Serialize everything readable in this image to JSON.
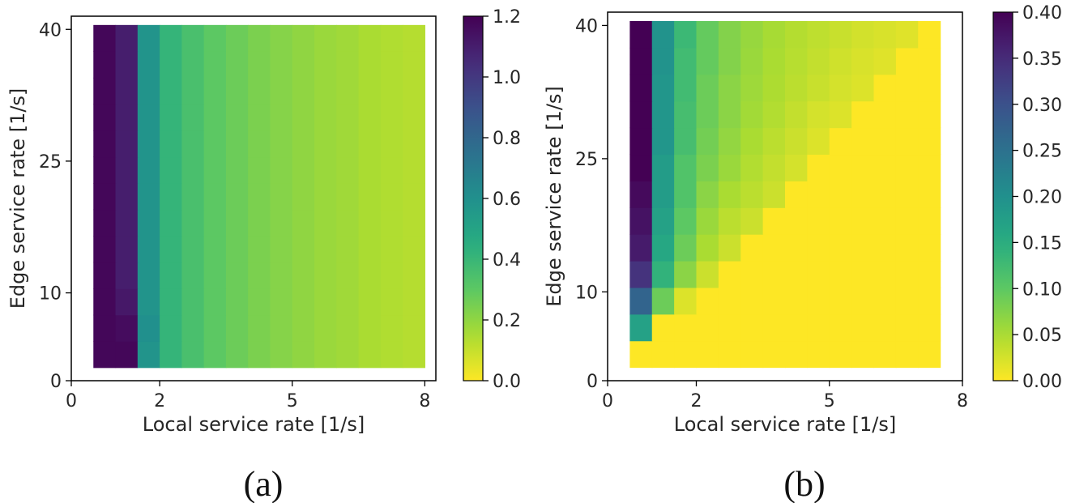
{
  "chart_data": [
    {
      "type": "heatmap",
      "panel_label": "(a)",
      "xlabel": "Local service rate [1/s]",
      "ylabel": "Edge service rate [1/s]",
      "xticks": [
        "0",
        "2",
        "5",
        "8"
      ],
      "xtick_values": [
        0,
        2,
        5,
        8
      ],
      "yticks": [
        "0",
        "10",
        "25",
        "40"
      ],
      "ytick_values": [
        0,
        10,
        25,
        40
      ],
      "colorbar": {
        "colormap": "viridis_r",
        "min": 0.0,
        "max": 1.2,
        "ticks": [
          "0.0",
          "0.2",
          "0.4",
          "0.6",
          "0.8",
          "1.0",
          "1.2"
        ],
        "tick_values": [
          0.0,
          0.2,
          0.4,
          0.6,
          0.8,
          1.0,
          1.2
        ]
      },
      "grid": false,
      "x_centers": [
        0.75,
        1.25,
        1.75,
        2.25,
        2.75,
        3.25,
        3.75,
        4.25,
        4.75,
        5.25,
        5.75,
        6.25,
        6.75,
        7.25,
        7.75
      ],
      "y_centers": [
        3,
        6,
        9,
        12,
        15,
        18,
        21,
        24,
        27,
        30,
        33,
        36,
        39
      ],
      "x_edges": [
        0.5,
        8.0
      ],
      "y_edges": [
        1.5,
        40.5
      ],
      "row_template": [
        1.18,
        1.1,
        0.58,
        0.41,
        0.35,
        0.3,
        0.27,
        0.24,
        0.22,
        0.2,
        0.18,
        0.17,
        0.15,
        0.14,
        0.13
      ],
      "row_adjust": [
        [
          0,
          1,
          1.18
        ],
        [
          1,
          1,
          1.16
        ],
        [
          1,
          2,
          0.6
        ],
        [
          2,
          1,
          1.12
        ]
      ]
    },
    {
      "type": "heatmap",
      "panel_label": "(b)",
      "xlabel": "Local service rate [1/s]",
      "ylabel": "Edge service rate [1/s]",
      "xticks": [
        "0",
        "2",
        "5",
        "8"
      ],
      "xtick_values": [
        0,
        2,
        5,
        8
      ],
      "yticks": [
        "0",
        "10",
        "25",
        "40"
      ],
      "ytick_values": [
        0,
        10,
        25,
        40
      ],
      "colorbar": {
        "colormap": "viridis_r",
        "min": 0.0,
        "max": 0.4,
        "ticks": [
          "0.00",
          "0.05",
          "0.10",
          "0.15",
          "0.20",
          "0.25",
          "0.30",
          "0.35",
          "0.40"
        ],
        "tick_values": [
          0.0,
          0.05,
          0.1,
          0.15,
          0.2,
          0.25,
          0.3,
          0.35,
          0.4
        ]
      },
      "grid": false,
      "x_centers": [
        0.75,
        1.25,
        1.75,
        2.25,
        2.75,
        3.25,
        3.75,
        4.25,
        4.75,
        5.25,
        5.75,
        6.25,
        6.75,
        7.25
      ],
      "y_centers": [
        3,
        6,
        9,
        12,
        15,
        18,
        21,
        24,
        27,
        30,
        33,
        36,
        39
      ],
      "x_edges": [
        0.5,
        7.5
      ],
      "y_edges": [
        1.5,
        40.5
      ],
      "values": [
        [
          0.0,
          0.0,
          0.0,
          0.0,
          0.0,
          0.0,
          0.0,
          0.0,
          0.0,
          0.0,
          0.0,
          0.0,
          0.0,
          0.0
        ],
        [
          0.17,
          0.0,
          0.0,
          0.0,
          0.0,
          0.0,
          0.0,
          0.0,
          0.0,
          0.0,
          0.0,
          0.0,
          0.0,
          0.0
        ],
        [
          0.27,
          0.09,
          0.02,
          0.0,
          0.0,
          0.0,
          0.0,
          0.0,
          0.0,
          0.0,
          0.0,
          0.0,
          0.0,
          0.0
        ],
        [
          0.34,
          0.14,
          0.07,
          0.03,
          0.0,
          0.0,
          0.0,
          0.0,
          0.0,
          0.0,
          0.0,
          0.0,
          0.0,
          0.0
        ],
        [
          0.37,
          0.16,
          0.09,
          0.05,
          0.03,
          0.0,
          0.0,
          0.0,
          0.0,
          0.0,
          0.0,
          0.0,
          0.0,
          0.0
        ],
        [
          0.38,
          0.17,
          0.1,
          0.06,
          0.04,
          0.03,
          0.0,
          0.0,
          0.0,
          0.0,
          0.0,
          0.0,
          0.0,
          0.0
        ],
        [
          0.39,
          0.18,
          0.11,
          0.07,
          0.05,
          0.04,
          0.03,
          0.0,
          0.0,
          0.0,
          0.0,
          0.0,
          0.0,
          0.0
        ],
        [
          0.4,
          0.18,
          0.11,
          0.08,
          0.06,
          0.045,
          0.035,
          0.025,
          0.0,
          0.0,
          0.0,
          0.0,
          0.0,
          0.0
        ],
        [
          0.4,
          0.19,
          0.12,
          0.085,
          0.065,
          0.05,
          0.04,
          0.03,
          0.02,
          0.0,
          0.0,
          0.0,
          0.0,
          0.0
        ],
        [
          0.4,
          0.19,
          0.12,
          0.09,
          0.07,
          0.055,
          0.045,
          0.035,
          0.025,
          0.02,
          0.0,
          0.0,
          0.0,
          0.0
        ],
        [
          0.4,
          0.19,
          0.125,
          0.09,
          0.07,
          0.058,
          0.048,
          0.04,
          0.032,
          0.025,
          0.02,
          0.0,
          0.0,
          0.0
        ],
        [
          0.4,
          0.195,
          0.125,
          0.095,
          0.075,
          0.06,
          0.05,
          0.042,
          0.035,
          0.028,
          0.022,
          0.018,
          0.0,
          0.0
        ],
        [
          0.4,
          0.195,
          0.13,
          0.095,
          0.075,
          0.062,
          0.052,
          0.044,
          0.038,
          0.032,
          0.026,
          0.022,
          0.018,
          0.0
        ]
      ]
    }
  ]
}
